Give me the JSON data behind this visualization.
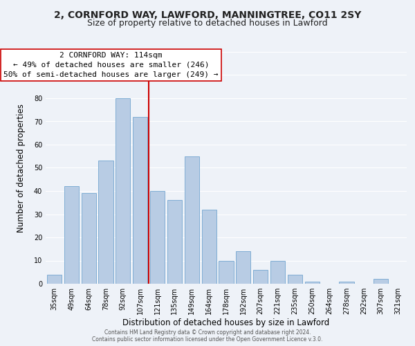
{
  "title": "2, CORNFORD WAY, LAWFORD, MANNINGTREE, CO11 2SY",
  "subtitle": "Size of property relative to detached houses in Lawford",
  "xlabel": "Distribution of detached houses by size in Lawford",
  "ylabel": "Number of detached properties",
  "categories": [
    "35sqm",
    "49sqm",
    "64sqm",
    "78sqm",
    "92sqm",
    "107sqm",
    "121sqm",
    "135sqm",
    "149sqm",
    "164sqm",
    "178sqm",
    "192sqm",
    "207sqm",
    "221sqm",
    "235sqm",
    "250sqm",
    "264sqm",
    "278sqm",
    "292sqm",
    "307sqm",
    "321sqm"
  ],
  "values": [
    4,
    42,
    39,
    53,
    80,
    72,
    40,
    36,
    55,
    32,
    10,
    14,
    6,
    10,
    4,
    1,
    0,
    1,
    0,
    2,
    0
  ],
  "bar_color": "#b8cce4",
  "bar_edge_color": "#7fadd4",
  "vline_x_index": 5.5,
  "vline_color": "#cc0000",
  "ylim": [
    0,
    100
  ],
  "annotation_line1": "2 CORNFORD WAY: 114sqm",
  "annotation_line2": "← 49% of detached houses are smaller (246)",
  "annotation_line3": "50% of semi-detached houses are larger (249) →",
  "footer_line1": "Contains HM Land Registry data © Crown copyright and database right 2024.",
  "footer_line2": "Contains public sector information licensed under the Open Government Licence v.3.0.",
  "background_color": "#eef2f8",
  "grid_color": "#ffffff",
  "title_fontsize": 10,
  "subtitle_fontsize": 9,
  "tick_fontsize": 7,
  "ylabel_fontsize": 8.5,
  "xlabel_fontsize": 8.5,
  "annotation_fontsize": 8,
  "footer_fontsize": 5.5
}
